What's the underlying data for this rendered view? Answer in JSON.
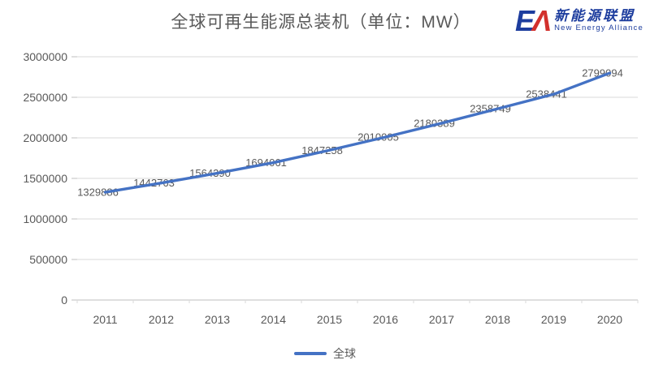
{
  "title": {
    "text": "全球可再生能源总装机（单位：MW）"
  },
  "logo": {
    "mark_e": "E",
    "mark_a": "Λ",
    "cn_name": "新能源联盟",
    "en_name": "New Energy Alliance",
    "blue": "#1d3d9e",
    "red": "#d2302c"
  },
  "legend": {
    "label": "全球"
  },
  "colors": {
    "line": "#4472C4",
    "text": "#595959",
    "grid": "#D9D9D9",
    "axis": "#BFBFBF"
  },
  "chart_data": {
    "type": "line",
    "title": "全球可再生能源总装机（单位：MW）",
    "categories": [
      "2011",
      "2012",
      "2013",
      "2014",
      "2015",
      "2016",
      "2017",
      "2018",
      "2019",
      "2020"
    ],
    "series": [
      {
        "name": "全球",
        "values": [
          1329886,
          1442763,
          1564390,
          1694061,
          1847258,
          2010005,
          2180389,
          2358749,
          2538441,
          2799094
        ]
      }
    ],
    "xlabel": "",
    "ylabel": "",
    "ylim": [
      0,
      3000000
    ],
    "ytick_step": 500000,
    "grid": true,
    "data_labels": true,
    "legend_position": "bottom"
  }
}
